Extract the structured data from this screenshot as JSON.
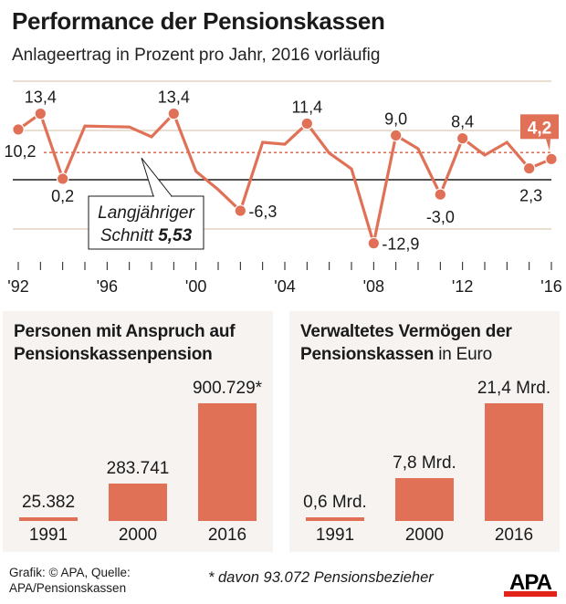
{
  "header": {
    "title": "Performance der Pensionskassen",
    "subtitle": "Anlageertrag in Prozent pro Jahr, 2016 vorläufig"
  },
  "colors": {
    "accent": "#e07157",
    "gridline": "#d9cbb8",
    "zero_line": "#1a1a1a",
    "panel_bg": "#f6f3f1",
    "logo_red": "#e2231a"
  },
  "chart_data": [
    {
      "type": "line",
      "title": "Performance der Pensionskassen",
      "subtitle": "Anlageertrag in Prozent pro Jahr, 2016 vorläufig",
      "xlabel": "",
      "ylabel": "Prozent",
      "ylim": [
        -20,
        20
      ],
      "grid": true,
      "gridlines": [
        20,
        10,
        0,
        -10
      ],
      "x": [
        1992,
        1993,
        1994,
        1995,
        1996,
        1997,
        1998,
        1999,
        2000,
        2001,
        2002,
        2003,
        2004,
        2005,
        2006,
        2007,
        2008,
        2009,
        2010,
        2011,
        2012,
        2013,
        2014,
        2015,
        2016
      ],
      "x_tick_labels": [
        {
          "year": 1992,
          "label": "'92"
        },
        {
          "year": 1996,
          "label": "'96"
        },
        {
          "year": 2000,
          "label": "'00"
        },
        {
          "year": 2004,
          "label": "'04"
        },
        {
          "year": 2008,
          "label": "'08"
        },
        {
          "year": 2012,
          "label": "'12"
        },
        {
          "year": 2016,
          "label": "'16"
        }
      ],
      "series": [
        {
          "name": "Anlageertrag",
          "values": [
            10.2,
            13.4,
            0.2,
            10.9,
            10.8,
            10.7,
            8.7,
            13.4,
            1.7,
            -2.0,
            -6.3,
            7.6,
            7.2,
            11.4,
            5.4,
            2.2,
            -12.9,
            9.0,
            6.3,
            -3.0,
            8.4,
            5.0,
            7.6,
            2.3,
            4.2
          ]
        }
      ],
      "data_labels": [
        {
          "year": 1992,
          "value": 10.2,
          "text": "10,2",
          "position": "left"
        },
        {
          "year": 1993,
          "value": 13.4,
          "text": "13,4",
          "position": "above"
        },
        {
          "year": 1994,
          "value": 0.2,
          "text": "0,2",
          "position": "below"
        },
        {
          "year": 1999,
          "value": 13.4,
          "text": "13,4",
          "position": "above"
        },
        {
          "year": 2002,
          "value": -6.3,
          "text": "-6,3",
          "position": "right"
        },
        {
          "year": 2005,
          "value": 11.4,
          "text": "11,4",
          "position": "above"
        },
        {
          "year": 2008,
          "value": -12.9,
          "text": "-12,9",
          "position": "right"
        },
        {
          "year": 2009,
          "value": 9.0,
          "text": "9,0",
          "position": "above"
        },
        {
          "year": 2011,
          "value": -3.0,
          "text": "-3,0",
          "position": "below"
        },
        {
          "year": 2012,
          "value": 8.4,
          "text": "8,4",
          "position": "above"
        },
        {
          "year": 2015,
          "value": 2.3,
          "text": "2,3",
          "position": "below"
        },
        {
          "year": 2016,
          "value": 4.2,
          "text": "4,2",
          "position": "callout",
          "highlight": true
        }
      ],
      "average": {
        "value": 5.53,
        "label_line1": "Langjähriger",
        "label_line2": "Schnitt",
        "label_value": "5,53"
      }
    },
    {
      "type": "bar",
      "title": "Personen mit Anspruch auf Pensionskassenpension",
      "title_line1": "Personen mit Anspruch auf",
      "title_line2": "Pensionskassenpension",
      "categories": [
        "1991",
        "2000",
        "2016"
      ],
      "values": [
        25382,
        283741,
        900729
      ],
      "value_labels": [
        "25.382",
        "283.741",
        "900.729*"
      ],
      "xlabel": "",
      "ylabel": "",
      "ylim": [
        0,
        900729
      ]
    },
    {
      "type": "bar",
      "title": "Verwaltetes Vermögen der Pensionskassen in Euro",
      "title_line1": "Verwaltetes Vermögen der",
      "title_line2_bold": "Pensionskassen",
      "title_line2_normal": " in Euro",
      "categories": [
        "1991",
        "2000",
        "2016"
      ],
      "values": [
        0.6,
        7.8,
        21.4
      ],
      "value_labels": [
        "0,6 Mrd.",
        "7,8 Mrd.",
        "21,4 Mrd."
      ],
      "unit": "Mrd. Euro",
      "xlabel": "",
      "ylabel": "",
      "ylim": [
        0,
        21.4
      ]
    }
  ],
  "footer": {
    "credit_line1": "Grafik: © APA, Quelle:",
    "credit_line2": "APA/Pensionskassen",
    "footnote": "* davon 93.072 Pensionsbezieher",
    "logo_text": "APA"
  }
}
